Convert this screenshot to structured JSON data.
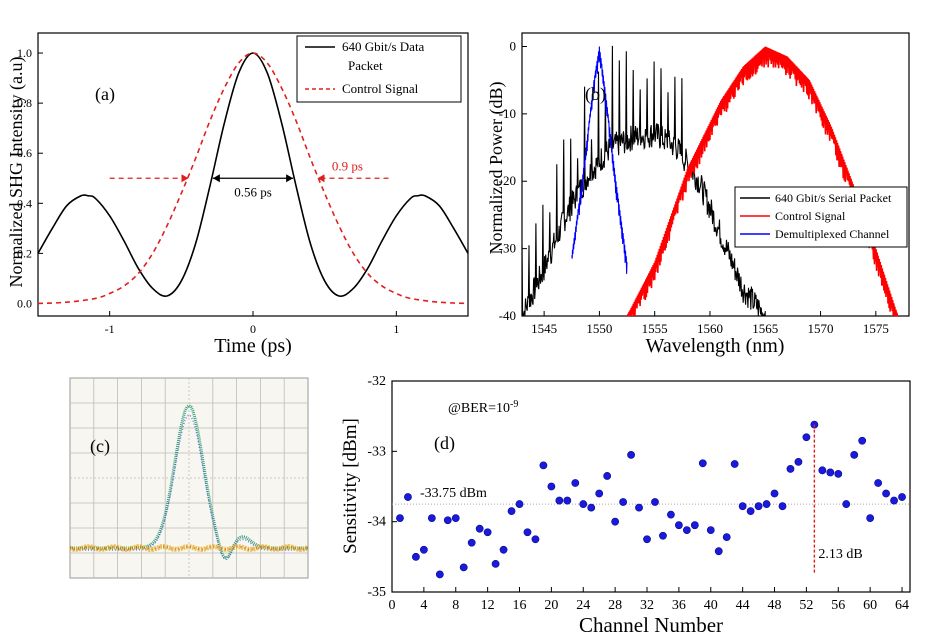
{
  "chart_data": [
    {
      "type": "line",
      "panel_label": "(a)",
      "xlabel": "Time (ps)",
      "ylabel": "Normalized SHG Intensity (a.u)",
      "xlim": [
        -1.5,
        1.5
      ],
      "ylim": [
        -0.05,
        1.08
      ],
      "xticks": [
        -1,
        0,
        1
      ],
      "xtick_labels": [
        "-1",
        "0",
        "1"
      ],
      "yticks": [
        0.0,
        0.2,
        0.4,
        0.6,
        0.8,
        1.0
      ],
      "ytick_labels": [
        "0.0",
        "0.2",
        "0.4",
        "0.6",
        "0.8",
        "1.0"
      ],
      "legend_position": "top-right",
      "legend": [
        "640 Gbit/s Data",
        "Packet",
        "Control Signal"
      ],
      "series": [
        {
          "name": "640 Gbit/s Data Packet",
          "color": "#000000",
          "style": "solid",
          "x": [
            -1.5,
            -1.4,
            -1.3,
            -1.2,
            -1.15,
            -1.1,
            -1.0,
            -0.9,
            -0.8,
            -0.7,
            -0.6,
            -0.5,
            -0.4,
            -0.3,
            -0.2,
            -0.1,
            0.0,
            0.1,
            0.2,
            0.3,
            0.4,
            0.5,
            0.6,
            0.7,
            0.8,
            0.9,
            1.0,
            1.1,
            1.15,
            1.2,
            1.3,
            1.4,
            1.5
          ],
          "y": [
            0.2,
            0.3,
            0.39,
            0.43,
            0.43,
            0.42,
            0.35,
            0.25,
            0.14,
            0.06,
            0.03,
            0.09,
            0.24,
            0.47,
            0.72,
            0.92,
            1.0,
            0.92,
            0.72,
            0.47,
            0.24,
            0.09,
            0.03,
            0.06,
            0.14,
            0.25,
            0.35,
            0.42,
            0.43,
            0.43,
            0.39,
            0.3,
            0.2
          ]
        },
        {
          "name": "Control Signal",
          "color": "#e0201c",
          "style": "dashed",
          "x": [
            -1.5,
            -1.3,
            -1.1,
            -1.0,
            -0.9,
            -0.8,
            -0.7,
            -0.6,
            -0.5,
            -0.4,
            -0.3,
            -0.2,
            -0.1,
            0.0,
            0.1,
            0.2,
            0.3,
            0.4,
            0.5,
            0.6,
            0.7,
            0.8,
            0.9,
            1.0,
            1.1,
            1.3,
            1.5
          ],
          "y": [
            0.0,
            0.005,
            0.02,
            0.04,
            0.07,
            0.12,
            0.2,
            0.31,
            0.44,
            0.58,
            0.73,
            0.86,
            0.96,
            1.0,
            0.96,
            0.86,
            0.73,
            0.58,
            0.44,
            0.31,
            0.2,
            0.12,
            0.07,
            0.04,
            0.02,
            0.005,
            0.0
          ]
        }
      ],
      "annotations": [
        {
          "text": "0.56 ps",
          "color": "#000000",
          "y": 0.5,
          "x_from": -0.28,
          "x_to": 0.28
        },
        {
          "text": "0.9 ps",
          "color": "#e0201c",
          "y": 0.5,
          "x_from": -0.45,
          "x_to": 0.45
        }
      ]
    },
    {
      "type": "line",
      "panel_label": "(b)",
      "xlabel": "Wavelength (nm)",
      "ylabel": "Normalized Power (dB)",
      "xlim": [
        1543,
        1578
      ],
      "ylim": [
        -40,
        2
      ],
      "xticks": [
        1545,
        1550,
        1555,
        1560,
        1565,
        1570,
        1575
      ],
      "xtick_labels": [
        "1545",
        "1550",
        "1555",
        "1560",
        "1565",
        "1570",
        "1575"
      ],
      "yticks": [
        0,
        -10,
        -20,
        -30,
        -40
      ],
      "ytick_labels": [
        "0",
        "-10",
        "-20",
        "-30",
        "-40"
      ],
      "legend_position": "bottom-right",
      "legend": [
        "640 Gbit/s  Serial Packet",
        "Control Signal",
        "Demultiplexed Channel"
      ],
      "series": [
        {
          "name": "640 Gbit/s  Serial Packet",
          "color": "#000000",
          "x": [
            1543,
            1545,
            1547,
            1549,
            1551,
            1553,
            1555,
            1557,
            1559,
            1561,
            1563,
            1565
          ],
          "y": [
            -40,
            -33,
            -25,
            -19,
            -15,
            -13.5,
            -13,
            -15,
            -20,
            -28,
            -36,
            -40
          ]
        },
        {
          "name": "Control Signal",
          "color": "#ff0000",
          "x": [
            1552.5,
            1555,
            1558,
            1561,
            1563,
            1565,
            1567,
            1569,
            1571,
            1574,
            1577
          ],
          "y": [
            -40,
            -32,
            -18,
            -8,
            -3,
            0,
            -1.5,
            -5,
            -12,
            -25,
            -40
          ]
        },
        {
          "name": "Demultiplexed Channel",
          "color": "#0000ff",
          "x": [
            1547.5,
            1548.5,
            1549.5,
            1550,
            1550.5,
            1551.5,
            1552.5
          ],
          "y": [
            -31,
            -19,
            -5,
            0,
            -6,
            -20,
            -32
          ]
        }
      ]
    },
    {
      "type": "scatter",
      "panel_label": "(d)",
      "xlabel": "Channel Number",
      "ylabel": "Sensitivity [dBm]",
      "xlim": [
        0,
        65
      ],
      "ylim": [
        -35,
        -32
      ],
      "xticks": [
        0,
        4,
        8,
        12,
        16,
        20,
        24,
        28,
        32,
        36,
        40,
        44,
        48,
        52,
        56,
        60,
        64
      ],
      "xtick_labels": [
        "0",
        "4",
        "8",
        "12",
        "16",
        "20",
        "24",
        "28",
        "32",
        "36",
        "40",
        "44",
        "48",
        "52",
        "56",
        "60",
        "64"
      ],
      "yticks": [
        -32,
        -33,
        -34,
        -35
      ],
      "ytick_labels": [
        "-32",
        "-33",
        "-34",
        "-35"
      ],
      "series": [
        {
          "name": "Channels",
          "color": "#1a1adc",
          "x": [
            1,
            2,
            3,
            4,
            5,
            6,
            7,
            8,
            9,
            10,
            11,
            12,
            13,
            14,
            15,
            16,
            17,
            18,
            19,
            20,
            21,
            22,
            23,
            24,
            25,
            26,
            27,
            28,
            29,
            30,
            31,
            32,
            33,
            34,
            35,
            36,
            37,
            38,
            39,
            40,
            41,
            42,
            43,
            44,
            45,
            46,
            47,
            48,
            49,
            50,
            51,
            52,
            53,
            54,
            55,
            56,
            57,
            58,
            59,
            60,
            61,
            62,
            63,
            64
          ],
          "y": [
            -33.95,
            -33.65,
            -34.5,
            -34.4,
            -33.95,
            -34.75,
            -33.98,
            -33.95,
            -34.65,
            -34.3,
            -34.1,
            -34.15,
            -34.6,
            -34.4,
            -33.85,
            -33.75,
            -34.15,
            -34.25,
            -33.2,
            -33.5,
            -33.7,
            -33.7,
            -33.45,
            -33.75,
            -33.8,
            -33.6,
            -33.35,
            -34.0,
            -33.72,
            -33.05,
            -33.8,
            -34.25,
            -33.72,
            -34.2,
            -33.9,
            -34.05,
            -34.12,
            -34.05,
            -33.17,
            -34.12,
            -34.42,
            -34.22,
            -33.18,
            -33.78,
            -33.85,
            -33.78,
            -33.75,
            -33.6,
            -33.78,
            -33.25,
            -33.15,
            -32.8,
            -32.62,
            -33.27,
            -33.3,
            -33.32,
            -33.75,
            -33.05,
            -32.85,
            -33.95,
            -33.45,
            -33.6,
            -33.7,
            -33.65
          ]
        }
      ],
      "reference_line_value": -33.75,
      "reference_label": "-33.75 dBm",
      "ber_label_base": "@BER=10",
      "ber_label_exp": "-9",
      "range_marker": {
        "x": 53,
        "from": -32.62,
        "to": -34.75,
        "label": "2.13 dB",
        "color": "#e0201c"
      }
    }
  ],
  "eye_diagram": {
    "panel_label": "(c)",
    "colors": {
      "background": "#f7f6f1",
      "grid": "#bcbcb4",
      "trace_green": "#3aa07a",
      "trace_blue": "#4a4ae0",
      "trace_red": "#d83a3a",
      "trace_yellow": "#e6b82a"
    }
  }
}
